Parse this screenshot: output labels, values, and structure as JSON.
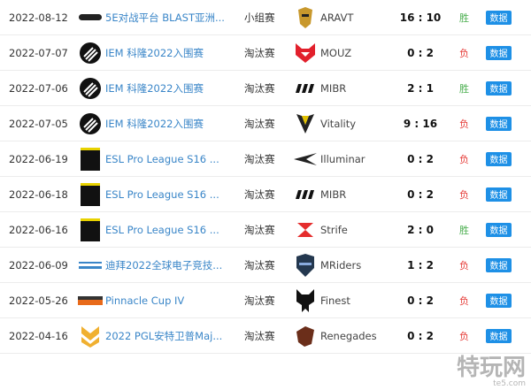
{
  "colors": {
    "win": "#4caf50",
    "loss": "#e53935",
    "link": "#3a86c8",
    "button": "#1e90e6"
  },
  "button_label": "数据",
  "matches": [
    {
      "date": "2022-08-12",
      "event": "5E对战平台 BLAST亚洲...",
      "event_icon": "blast-logo",
      "stage": "小组赛",
      "team": "ARAVT",
      "team_icon": "aravt-logo",
      "score": "16 : 10",
      "result": "胜"
    },
    {
      "date": "2022-07-07",
      "event": "IEM 科隆2022入围赛",
      "event_icon": "iem-logo",
      "stage": "淘汰赛",
      "team": "MOUZ",
      "team_icon": "mouz-logo",
      "score": "0 : 2",
      "result": "负"
    },
    {
      "date": "2022-07-06",
      "event": "IEM 科隆2022入围赛",
      "event_icon": "iem-logo",
      "stage": "淘汰赛",
      "team": "MIBR",
      "team_icon": "mibr-logo",
      "score": "2 : 1",
      "result": "胜"
    },
    {
      "date": "2022-07-05",
      "event": "IEM 科隆2022入围赛",
      "event_icon": "iem-logo",
      "stage": "淘汰赛",
      "team": "Vitality",
      "team_icon": "vitality-logo",
      "score": "9 : 16",
      "result": "负"
    },
    {
      "date": "2022-06-19",
      "event": "ESL Pro League S16 ...",
      "event_icon": "esl-pro-league-logo",
      "stage": "淘汰赛",
      "team": "Illuminar",
      "team_icon": "illuminar-logo",
      "score": "0 : 2",
      "result": "负"
    },
    {
      "date": "2022-06-18",
      "event": "ESL Pro League S16 ...",
      "event_icon": "esl-pro-league-logo",
      "stage": "淘汰赛",
      "team": "MIBR",
      "team_icon": "mibr-logo",
      "score": "0 : 2",
      "result": "负"
    },
    {
      "date": "2022-06-16",
      "event": "ESL Pro League S16 ...",
      "event_icon": "esl-pro-league-logo",
      "stage": "淘汰赛",
      "team": "Strife",
      "team_icon": "strife-logo",
      "score": "2 : 0",
      "result": "胜"
    },
    {
      "date": "2022-06-09",
      "event": "迪拜2022全球电子竞技...",
      "event_icon": "tour-logo",
      "stage": "淘汰赛",
      "team": "MRiders",
      "team_icon": "mriders-logo",
      "score": "1 : 2",
      "result": "负"
    },
    {
      "date": "2022-05-26",
      "event": "Pinnacle Cup IV",
      "event_icon": "pinnacle-logo",
      "stage": "淘汰赛",
      "team": "Finest",
      "team_icon": "finest-logo",
      "score": "0 : 2",
      "result": "负"
    },
    {
      "date": "2022-04-16",
      "event": "2022 PGL安特卫普Maj...",
      "event_icon": "pgl-major-logo",
      "stage": "淘汰赛",
      "team": "Renegades",
      "team_icon": "renegades-logo",
      "score": "0 : 2",
      "result": "负"
    }
  ],
  "watermark": {
    "text": "特玩网",
    "domain": "te5.com"
  }
}
